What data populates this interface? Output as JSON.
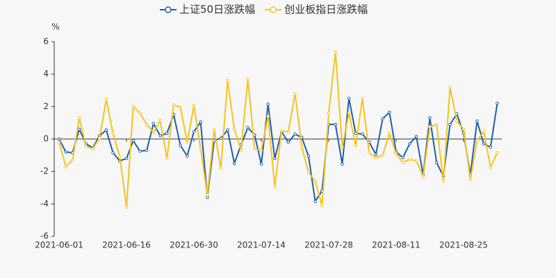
{
  "chart_data": {
    "type": "line",
    "y_label": "%",
    "categories": [
      "2021-06-01",
      null,
      null,
      null,
      null,
      null,
      null,
      null,
      null,
      null,
      "2021-06-16",
      null,
      null,
      null,
      null,
      null,
      null,
      null,
      null,
      null,
      "2021-06-30",
      null,
      null,
      null,
      null,
      null,
      null,
      null,
      null,
      null,
      "2021-07-14",
      null,
      null,
      null,
      null,
      null,
      null,
      null,
      null,
      null,
      "2021-07-28",
      null,
      null,
      null,
      null,
      null,
      null,
      null,
      null,
      null,
      "2021-08-11",
      null,
      null,
      null,
      null,
      null,
      null,
      null,
      null,
      null,
      "2021-08-25",
      null,
      null,
      null,
      null,
      null
    ],
    "series": [
      {
        "name": "上证50日涨跌幅",
        "color": "#1f5fa6",
        "values": [
          0.0,
          -0.8,
          -0.85,
          0.6,
          -0.3,
          -0.55,
          0.2,
          0.55,
          -0.85,
          -1.35,
          -1.2,
          -0.1,
          -0.75,
          -0.7,
          0.95,
          0.2,
          0.35,
          1.5,
          -0.4,
          -1.05,
          0.45,
          1.05,
          -3.6,
          -0.1,
          0.05,
          0.55,
          -1.5,
          -0.35,
          0.7,
          0.25,
          -1.55,
          2.15,
          -1.2,
          0.45,
          -0.2,
          0.3,
          0.1,
          -1.05,
          -3.85,
          -3.2,
          0.9,
          0.9,
          -1.55,
          2.5,
          0.35,
          0.3,
          -0.2,
          -0.95,
          1.25,
          1.65,
          -0.8,
          -1.15,
          -0.3,
          0.15,
          -2.2,
          1.3,
          -1.45,
          -2.3,
          0.9,
          1.55,
          0.35,
          -2.2,
          1.1,
          -0.3,
          -0.5,
          2.2
        ]
      },
      {
        "name": "创业板指日涨跌幅",
        "color": "#f7c31c",
        "values": [
          -0.2,
          -1.7,
          -1.3,
          1.3,
          -0.45,
          -0.6,
          0.05,
          2.45,
          0.35,
          -1.1,
          -4.2,
          2.0,
          1.6,
          0.9,
          0.4,
          1.15,
          -1.2,
          2.1,
          1.95,
          -0.2,
          2.05,
          -0.6,
          -3.45,
          0.55,
          -1.8,
          3.6,
          0.6,
          -0.7,
          3.7,
          -0.6,
          -0.7,
          1.4,
          -2.95,
          0.5,
          0.45,
          2.8,
          -0.5,
          -2.05,
          -2.6,
          -4.1,
          1.6,
          5.35,
          -0.5,
          1.6,
          -0.4,
          2.5,
          -0.85,
          -1.15,
          -1.0,
          0.35,
          -0.9,
          -1.45,
          -1.25,
          -1.35,
          -2.3,
          0.75,
          0.9,
          -2.6,
          3.2,
          1.1,
          0.6,
          -2.5,
          -0.1,
          0.45,
          -1.75,
          -0.85
        ]
      }
    ],
    "ylim": [
      -6,
      6
    ],
    "yticks": [
      -6,
      -4,
      -2,
      0,
      2,
      4,
      6
    ],
    "legend": "top"
  }
}
